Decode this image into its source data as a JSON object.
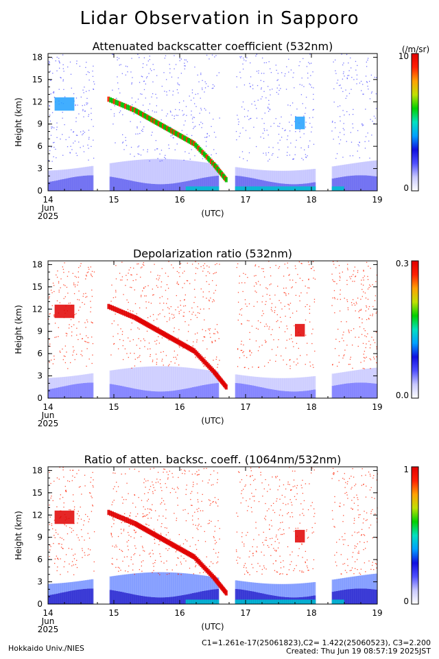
{
  "title": "Lidar Observation in Sapporo",
  "footer": {
    "institution": "Hokkaido Univ./NIES",
    "constants": "C1=1.261e-17(25061823),C2= 1.422(25060523), C3=2.200",
    "created": "Created: Thu Jun 19 08:57:19 2025JST"
  },
  "colors": {
    "colorbar": [
      "#ffffff",
      "#c8c8ff",
      "#5050ff",
      "#1010e0",
      "#00a0ff",
      "#00e0c0",
      "#00d000",
      "#c0e000",
      "#ffa000",
      "#ff2000",
      "#e00000"
    ]
  },
  "chart_data": [
    {
      "type": "heatmap",
      "title": "Attenuated backscatter coefficient (532nm)",
      "ylabel": "Height (km)",
      "xlabel": "(UTC)",
      "y_ticks": [
        "0",
        "3",
        "6",
        "9",
        "12",
        "15",
        "18"
      ],
      "x_ticks": [
        "14",
        "15",
        "16",
        "17",
        "18",
        "19"
      ],
      "x_date_label": [
        "Jun",
        "2025"
      ],
      "xlim": [
        14,
        19
      ],
      "ylim": [
        0,
        18.5
      ],
      "colorbar": {
        "min_label": "0",
        "max_label": "10",
        "unit_label": "(/m/sr)"
      },
      "features": {
        "boundary_layer_top_km": 2.0,
        "cirrus": [
          {
            "t": 14.2,
            "h": [
              11,
              12.5
            ]
          },
          {
            "t": 17.8,
            "h": [
              8.5,
              10
            ]
          }
        ],
        "descending_layer": [
          {
            "t": 15.8,
            "h": 7.5
          },
          {
            "t": 16.5,
            "h": 2.5
          },
          {
            "t": 16.8,
            "h": 0.5
          }
        ]
      }
    },
    {
      "type": "heatmap",
      "title": "Depolarization ratio (532nm)",
      "ylabel": "Height (km)",
      "xlabel": "(UTC)",
      "y_ticks": [
        "0",
        "3",
        "6",
        "9",
        "12",
        "15",
        "18"
      ],
      "x_ticks": [
        "14",
        "15",
        "16",
        "17",
        "18",
        "19"
      ],
      "x_date_label": [
        "Jun",
        "2025"
      ],
      "xlim": [
        14,
        19
      ],
      "ylim": [
        0,
        18.5
      ],
      "colorbar": {
        "min_label": "0.0",
        "max_label": "0.3"
      }
    },
    {
      "type": "heatmap",
      "title": "Ratio of atten. backsc. coeff. (1064nm/532nm)",
      "ylabel": "Height (km)",
      "xlabel": "(UTC)",
      "y_ticks": [
        "0",
        "3",
        "6",
        "9",
        "12",
        "15",
        "18"
      ],
      "x_ticks": [
        "14",
        "15",
        "16",
        "17",
        "18",
        "19"
      ],
      "x_date_label": [
        "Jun",
        "2025"
      ],
      "xlim": [
        14,
        19
      ],
      "ylim": [
        0,
        18.5
      ],
      "colorbar": {
        "min_label": "0",
        "max_label": "1"
      }
    }
  ]
}
